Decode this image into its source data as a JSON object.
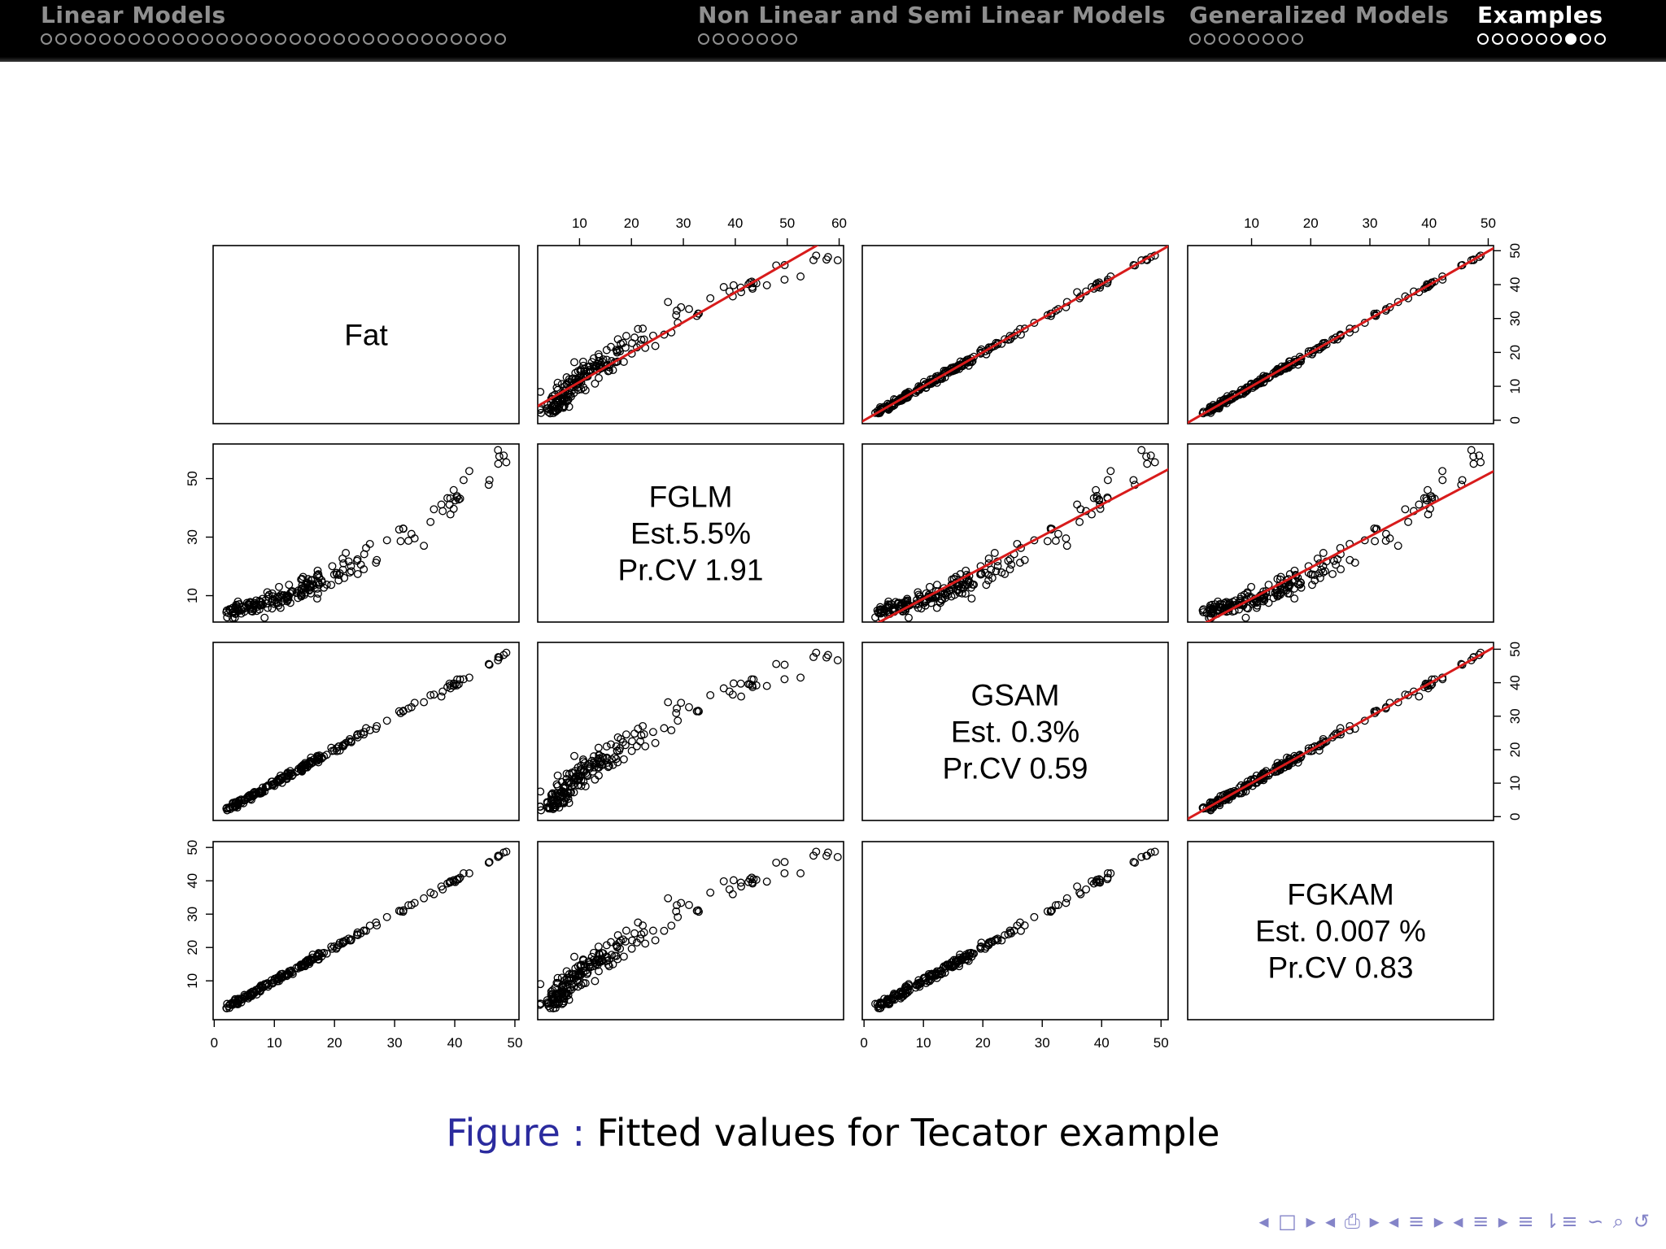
{
  "nav": {
    "sections": [
      {
        "title": "Linear Models",
        "dots": 32,
        "filled": -1,
        "active": false,
        "left": 50
      },
      {
        "title": "Non Linear and Semi Linear Models",
        "dots": 7,
        "filled": -1,
        "active": false,
        "left": 858
      },
      {
        "title": "Generalized Models",
        "dots": 8,
        "filled": -1,
        "active": false,
        "left": 1462
      },
      {
        "title": "Examples",
        "dots": 9,
        "filled": 6,
        "active": true,
        "left": 1816
      }
    ]
  },
  "chart_data": {
    "type": "scatter",
    "layout": "pairs-matrix",
    "variables": [
      "Fat",
      "FGLM",
      "GSAM",
      "FGKAM"
    ],
    "diagonal_text": {
      "Fat": [
        "Fat"
      ],
      "FGLM": [
        "FGLM",
        "Est.5.5%",
        "Pr.CV 1.91"
      ],
      "GSAM": [
        "GSAM",
        "Est. 0.3%",
        "Pr.CV 0.59"
      ],
      "FGKAM": [
        "FGKAM",
        "Est. 0.007 %",
        "Pr.CV 0.83"
      ]
    },
    "ranges": {
      "Fat": [
        0.9,
        49.6
      ],
      "FGLM": [
        3.2,
        59.6
      ],
      "GSAM": [
        0.8,
        50.1
      ],
      "FGKAM": [
        0.3,
        49.8
      ]
    },
    "ticks": {
      "Fat": [
        0,
        10,
        20,
        30,
        40,
        50
      ],
      "FGLM": [
        10,
        20,
        30,
        40,
        50,
        60
      ],
      "FGLM_left": [
        10,
        30,
        50
      ],
      "GSAM": [
        0,
        10,
        20,
        30,
        40,
        50
      ],
      "FGKAM": [
        10,
        20,
        30,
        40,
        50
      ],
      "FGKAM_right": [
        0,
        10,
        20,
        30,
        40,
        50
      ]
    },
    "fit_lines": [
      {
        "row": "Fat",
        "col": "FGLM"
      },
      {
        "row": "Fat",
        "col": "GSAM"
      },
      {
        "row": "Fat",
        "col": "FGKAM"
      },
      {
        "row": "FGLM",
        "col": "GSAM"
      },
      {
        "row": "FGLM",
        "col": "FGKAM"
      },
      {
        "row": "GSAM",
        "col": "FGKAM"
      }
    ],
    "fit_color": "#d81b1b",
    "n_points": 215
  },
  "caption": {
    "label": "Figure :",
    "text": "Fitted values for Tecator example"
  },
  "beamer_nav": "◂ □ ▸  ◂ ⎙ ▸  ◂ ≡ ▸  ◂ ≡ ▸   ≡ ⇂≡   ∽ ⌕ ↺"
}
